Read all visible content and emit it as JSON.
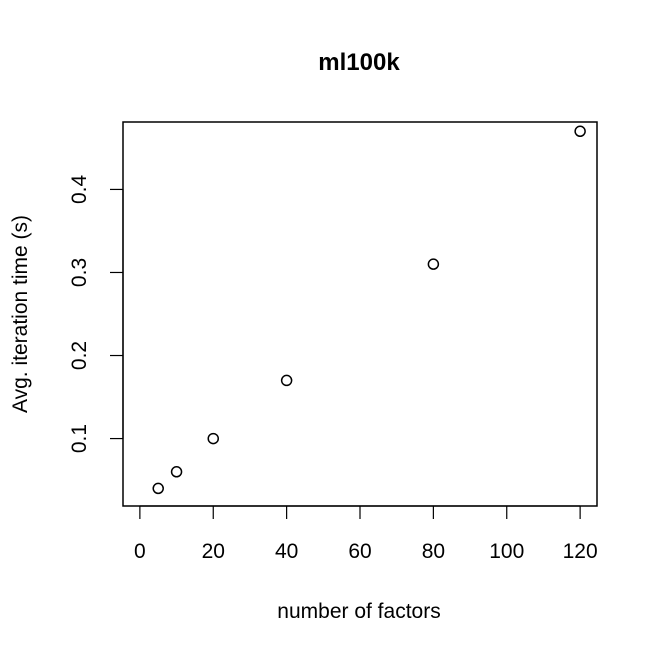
{
  "chart_data": {
    "type": "scatter",
    "title": "ml100k",
    "xlabel": "number of factors",
    "ylabel": "Avg. iteration time (s)",
    "x": [
      5,
      10,
      20,
      40,
      80,
      120
    ],
    "y": [
      0.04,
      0.06,
      0.1,
      0.17,
      0.31,
      0.47
    ],
    "xlim": [
      -4.6,
      124.6
    ],
    "ylim": [
      0.0188,
      0.4812
    ],
    "xticks": [
      0,
      20,
      40,
      60,
      80,
      100,
      120
    ],
    "xtick_labels": [
      "0",
      "20",
      "40",
      "60",
      "80",
      "100",
      "120"
    ],
    "yticks": [
      0.1,
      0.2,
      0.3,
      0.4
    ],
    "ytick_labels": [
      "0.1",
      "0.2",
      "0.3",
      "0.4"
    ],
    "grid": false,
    "marker": "open-circle",
    "colors": {
      "foreground": "#000000",
      "background": "#ffffff"
    }
  }
}
